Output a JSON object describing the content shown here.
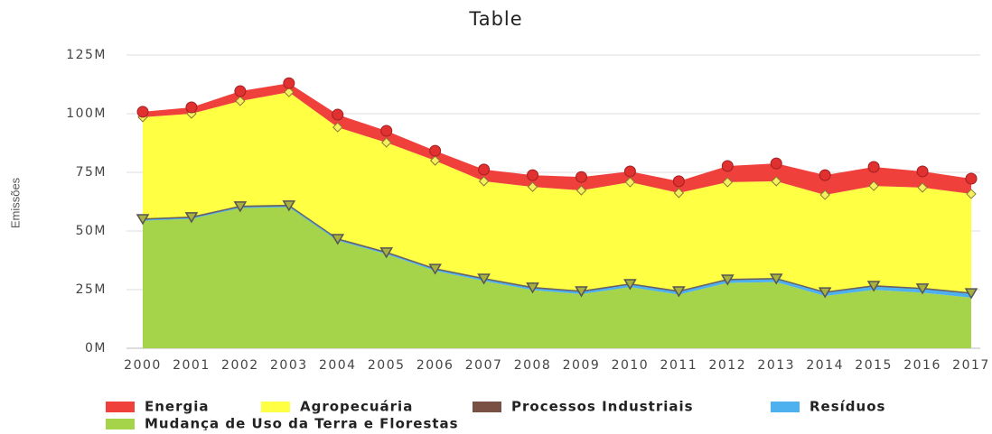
{
  "chart_data": {
    "type": "stacked-area",
    "title": "Table",
    "y_label": "Emissões",
    "categories": [
      "2000",
      "2001",
      "2002",
      "2003",
      "2004",
      "2005",
      "2006",
      "2007",
      "2008",
      "2009",
      "2010",
      "2011",
      "2012",
      "2013",
      "2014",
      "2015",
      "2016",
      "2017"
    ],
    "series": [
      {
        "name": "Energia",
        "color": "#f0403c",
        "values": [
          2.3,
          2.7,
          4.2,
          3.8,
          5.4,
          5,
          4.2,
          5,
          5,
          5.7,
          4.6,
          5,
          6.9,
          7.6,
          8.4,
          8.1,
          6.9,
          6.5
        ]
      },
      {
        "name": "Agropecuária",
        "color": "#ffff44",
        "values": [
          43.1,
          43.8,
          44.6,
          48,
          47.3,
          46.5,
          45.8,
          41.2,
          42.6,
          42.7,
          43.1,
          41.6,
          41.2,
          41.2,
          41.2,
          42.3,
          42.7,
          42
        ]
      },
      {
        "name": "Processos Industriais",
        "color": "#7b5044",
        "values": [
          0.6,
          0.6,
          0.6,
          0.6,
          0.6,
          0.6,
          0.6,
          0.6,
          0.6,
          0.6,
          0.6,
          0.6,
          0.6,
          0.6,
          0.6,
          0.6,
          0.6,
          0.6
        ]
      },
      {
        "name": "Resíduos",
        "color": "#4db1f0",
        "values": [
          0.4,
          0.4,
          0.4,
          0.4,
          0.4,
          0.5,
          0.6,
          0.7,
          0.8,
          0.9,
          1.0,
          1.1,
          1.1,
          1.2,
          1.3,
          1.4,
          1.5,
          1.6
        ]
      },
      {
        "name": "Mudança de Uso da Terra e Florestas",
        "color": "#a5d34a",
        "values": [
          54.4,
          55.2,
          59.8,
          60.2,
          45.9,
          40.1,
          33,
          28.7,
          24.8,
          23.1,
          26.1,
          22.9,
          27.9,
          28.2,
          22.3,
          24.9,
          23.7,
          21.6
        ]
      }
    ],
    "ylim": [
      0,
      125
    ],
    "yticks": [
      {
        "value": 0,
        "label": "0M"
      },
      {
        "value": 25,
        "label": "25M"
      },
      {
        "value": 50,
        "label": "50M"
      },
      {
        "value": 75,
        "label": "75M"
      },
      {
        "value": 100,
        "label": "100M"
      },
      {
        "value": 125,
        "label": "125M"
      }
    ],
    "grid": true
  }
}
